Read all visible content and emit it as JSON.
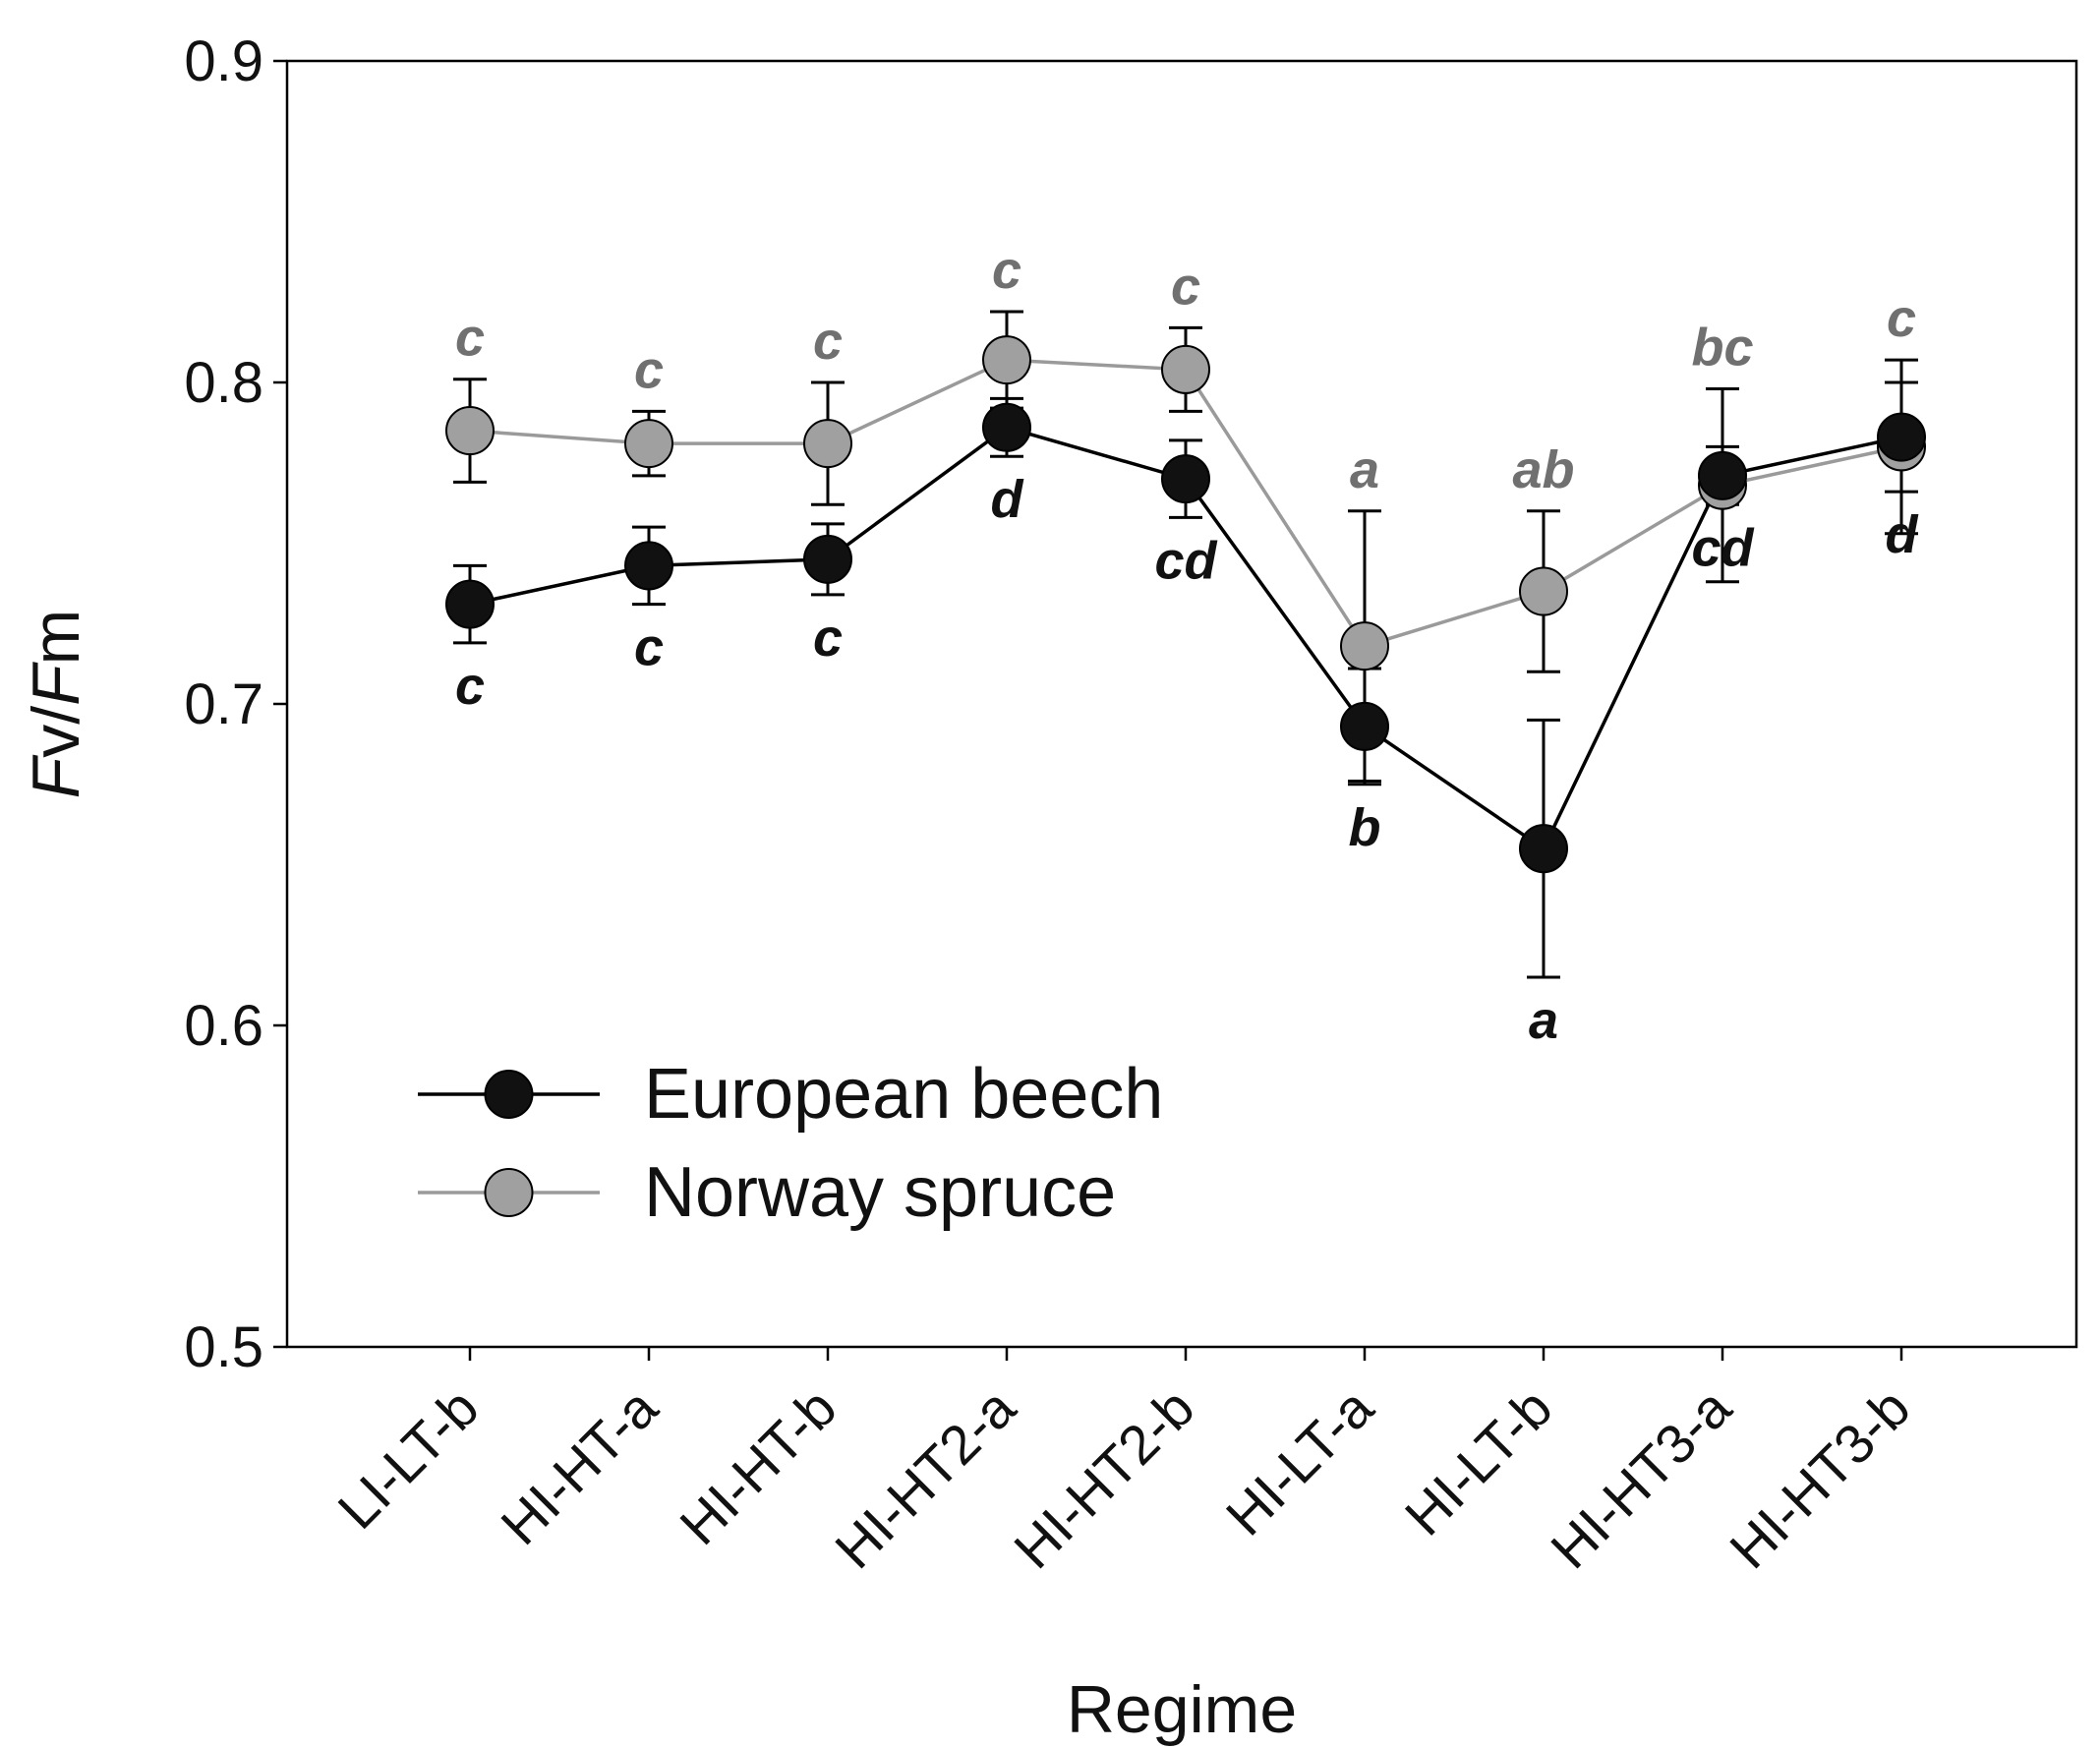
{
  "chart_data": {
    "type": "line",
    "xlabel": "Regime",
    "ylabel_parts": [
      "F",
      "v/",
      "F",
      "m"
    ],
    "ylim": [
      0.5,
      0.9
    ],
    "yticks": [
      "0.5",
      "0.6",
      "0.7",
      "0.8",
      "0.9"
    ],
    "categories": [
      "LI-LT-b",
      "HI-HT-a",
      "HI-HT-b",
      "HI-HT2-a",
      "HI-HT2-b",
      "HI-LT-a",
      "HI-LT-b",
      "HI-HT3-a",
      "HI-HT3-b"
    ],
    "grid": false,
    "legend_position": "lower-left",
    "series": [
      {
        "name": "European beech",
        "color": "#000000",
        "marker_color": "#111111",
        "values": [
          0.731,
          0.743,
          0.745,
          0.786,
          0.77,
          0.693,
          0.655,
          0.771,
          0.783
        ],
        "errors": [
          0.012,
          0.012,
          0.011,
          0.009,
          0.012,
          0.018,
          0.04,
          0.009,
          0.017
        ],
        "letters": [
          "c",
          "c",
          "c",
          "d",
          "cd",
          "b",
          "a",
          "cd",
          "d"
        ],
        "letter_color": "#111111"
      },
      {
        "name": "Norway spruce",
        "color": "#9a9a9a",
        "marker_color": "#a0a0a0",
        "values": [
          0.785,
          0.781,
          0.781,
          0.807,
          0.804,
          0.718,
          0.735,
          0.768,
          0.78
        ],
        "errors": [
          0.016,
          0.01,
          0.019,
          0.015,
          0.013,
          0.042,
          0.025,
          0.03,
          0.027
        ],
        "letters": [
          "c",
          "c",
          "c",
          "c",
          "c",
          "a",
          "ab",
          "bc",
          "c"
        ],
        "letter_color": "#707070"
      }
    ]
  }
}
